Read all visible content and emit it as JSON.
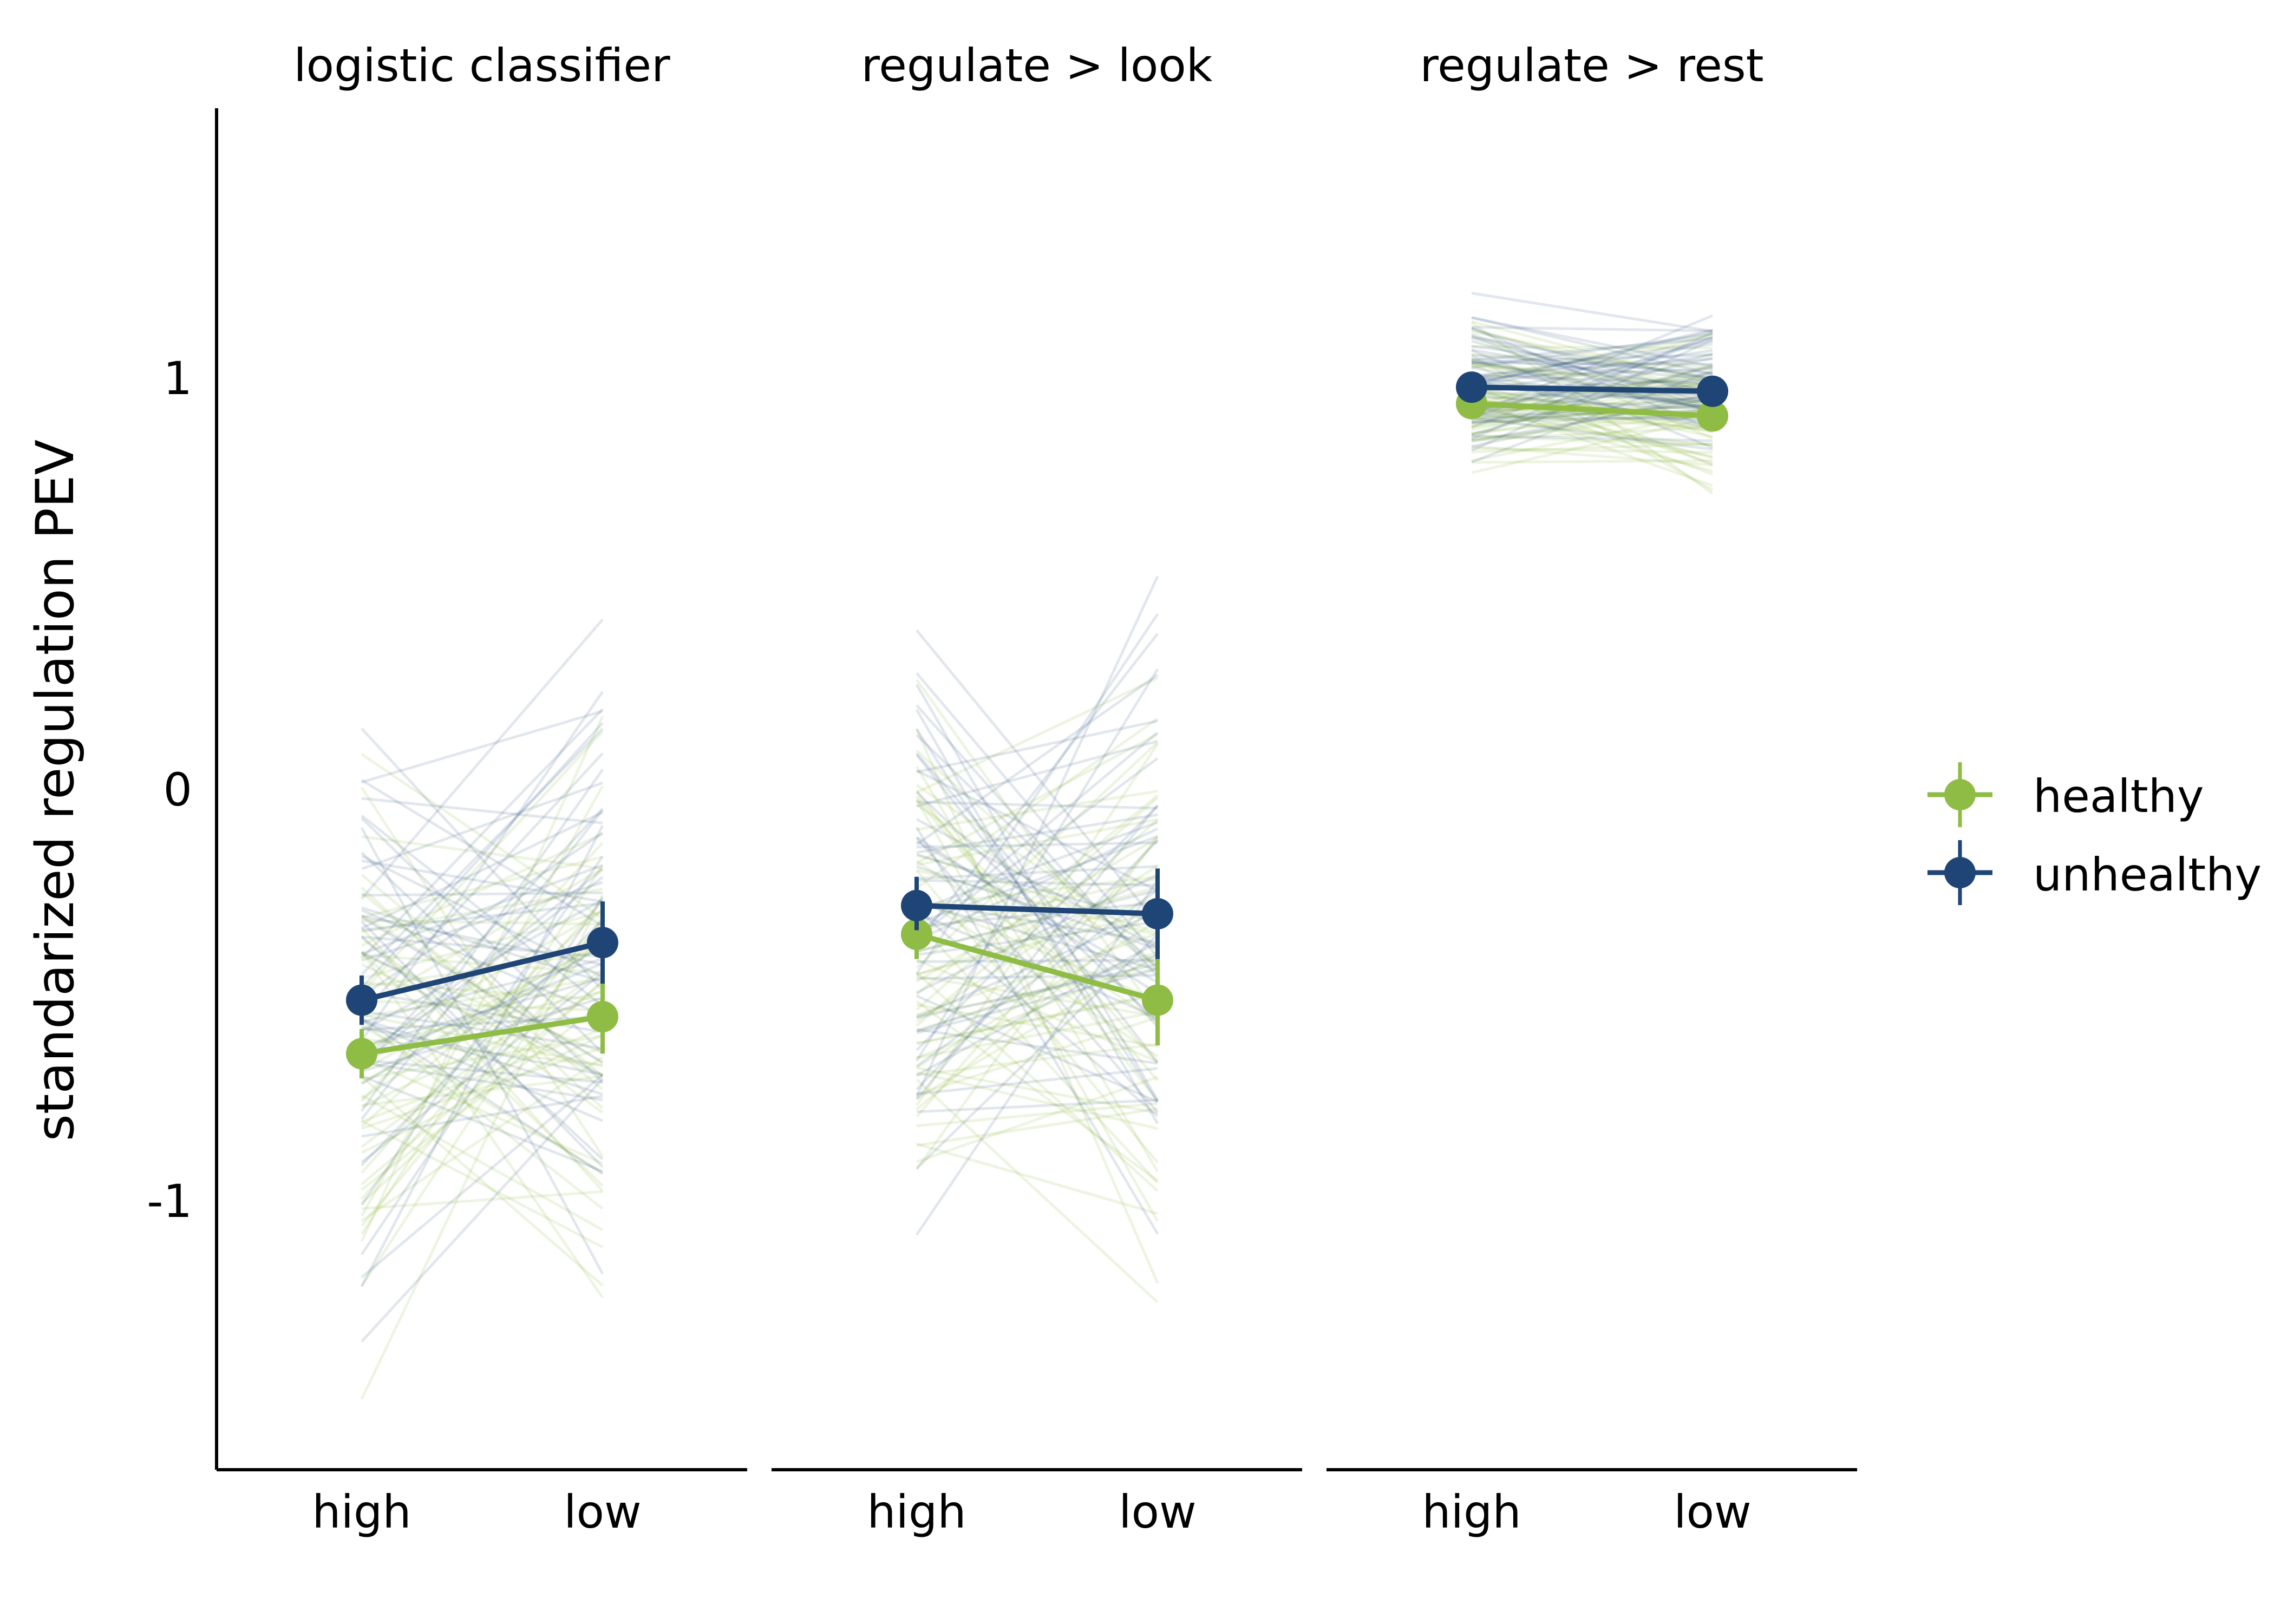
{
  "chart_data": {
    "type": "line",
    "ylabel": "standarized regulation PEV",
    "yticks": [
      "1",
      "0",
      "-1"
    ],
    "ylim": [
      -1.65,
      1.65
    ],
    "categories": [
      "high",
      "low"
    ],
    "legend": {
      "placement": "right",
      "entries": [
        "healthy",
        "unhealthy"
      ]
    },
    "colors": {
      "healthy": "#8fbc45",
      "unhealthy": "#1f4576"
    },
    "panels": [
      {
        "title": "logistic classifier",
        "series": [
          {
            "name": "healthy",
            "values": [
              -0.64,
              -0.55
            ],
            "errors": [
              [
                -0.7,
                -0.58
              ],
              [
                -0.64,
                -0.47
              ]
            ]
          },
          {
            "name": "unhealthy",
            "values": [
              -0.51,
              -0.37
            ],
            "errors": [
              [
                -0.57,
                -0.45
              ],
              [
                -0.47,
                -0.27
              ]
            ]
          }
        ]
      },
      {
        "title": "regulate > look",
        "series": [
          {
            "name": "healthy",
            "values": [
              -0.35,
              -0.51
            ],
            "errors": [
              [
                -0.41,
                -0.29
              ],
              [
                -0.62,
                -0.41
              ]
            ]
          },
          {
            "name": "unhealthy",
            "values": [
              -0.28,
              -0.3
            ],
            "errors": [
              [
                -0.34,
                -0.21
              ],
              [
                -0.41,
                -0.19
              ]
            ]
          }
        ]
      },
      {
        "title": "regulate > rest",
        "series": [
          {
            "name": "healthy",
            "values": [
              0.94,
              0.91
            ],
            "errors": [
              [
                0.91,
                0.97
              ],
              [
                0.88,
                0.94
              ]
            ]
          },
          {
            "name": "unhealthy",
            "values": [
              0.98,
              0.97
            ],
            "errors": [
              [
                0.95,
                1.01
              ],
              [
                0.94,
                1.0
              ]
            ]
          }
        ]
      }
    ]
  }
}
